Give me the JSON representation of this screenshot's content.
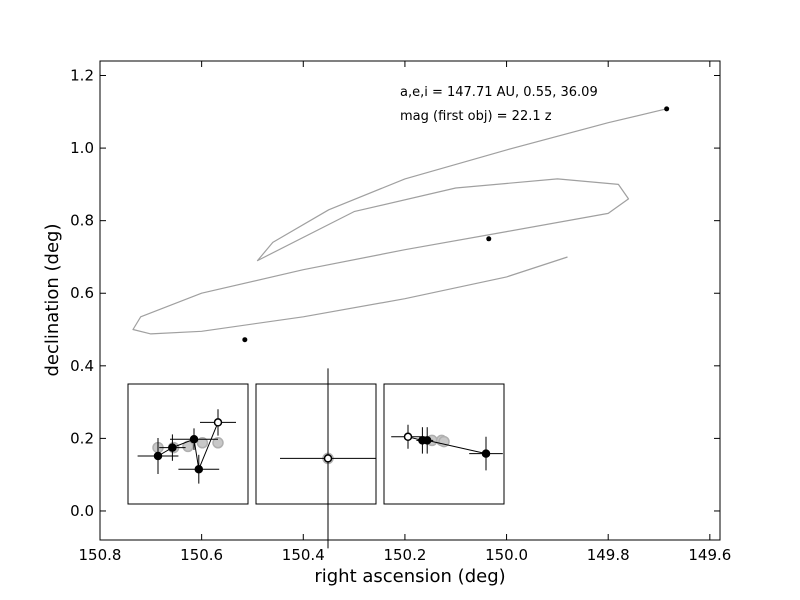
{
  "chart_data": {
    "type": "line",
    "title": "",
    "xlabel": "right ascension (deg)",
    "ylabel": "declination (deg)",
    "xlim": [
      150.8,
      149.58
    ],
    "ylim": [
      -0.08,
      1.24
    ],
    "x_inverted": true,
    "grid": false,
    "xticks": [
      150.8,
      150.6,
      150.4,
      150.2,
      150.0,
      149.8,
      149.6
    ],
    "xtick_labels": [
      "150.8",
      "150.6",
      "150.4",
      "150.2",
      "150.0",
      "149.8",
      "149.6"
    ],
    "yticks": [
      0.0,
      0.2,
      0.4,
      0.6,
      0.8,
      1.0,
      1.2
    ],
    "ytick_labels": [
      "0.0",
      "0.2",
      "0.4",
      "0.6",
      "0.8",
      "1.0",
      "1.2"
    ],
    "annotations": [
      "a,e,i = 147.71 AU, 0.55, 36.09",
      "mag (first obj) =  22.1 z"
    ],
    "series": [
      {
        "kind": "orbit_track",
        "color": "#a0a0a0",
        "x": [
          149.88,
          150.0,
          150.2,
          150.4,
          150.6,
          150.7,
          150.735,
          150.72,
          150.6,
          150.4,
          150.2,
          150.0,
          149.8,
          149.76,
          149.78,
          149.9,
          150.1,
          150.3,
          150.49,
          150.46,
          150.35,
          150.2,
          150.0,
          149.8,
          149.68
        ],
        "y": [
          0.7,
          0.645,
          0.585,
          0.535,
          0.495,
          0.488,
          0.5,
          0.535,
          0.6,
          0.665,
          0.72,
          0.77,
          0.82,
          0.86,
          0.9,
          0.915,
          0.89,
          0.825,
          0.69,
          0.74,
          0.83,
          0.915,
          0.995,
          1.07,
          1.11
        ]
      },
      {
        "kind": "detections",
        "color": "#000000",
        "x": [
          150.515,
          150.035,
          149.685
        ],
        "y": [
          0.472,
          0.75,
          1.108
        ]
      }
    ],
    "insets": [
      {
        "kind": "detection_cutout",
        "points": [
          {
            "u": 0.25,
            "v": 0.4,
            "xerr": 0.17,
            "yerr": 0.15,
            "filled": true
          },
          {
            "u": 0.37,
            "v": 0.47,
            "xerr": 0.11,
            "yerr": 0.11,
            "filled": true
          },
          {
            "u": 0.55,
            "v": 0.54,
            "xerr": 0.2,
            "yerr": 0.09,
            "filled": true
          },
          {
            "u": 0.59,
            "v": 0.29,
            "xerr": 0.17,
            "yerr": 0.12,
            "filled": true
          },
          {
            "u": 0.75,
            "v": 0.68,
            "xerr": 0.15,
            "yerr": 0.11,
            "filled": false
          }
        ],
        "ghosts": [
          {
            "u": 0.25,
            "v": 0.47
          },
          {
            "u": 0.38,
            "v": 0.47
          },
          {
            "u": 0.5,
            "v": 0.48
          },
          {
            "u": 0.62,
            "v": 0.51
          },
          {
            "u": 0.75,
            "v": 0.51
          }
        ]
      },
      {
        "kind": "detection_cutout",
        "points": [
          {
            "u": 0.6,
            "v": 0.38,
            "xerr": 0.4,
            "yerr": 0.75,
            "filled": false
          }
        ],
        "ghosts": [
          {
            "u": 0.6,
            "v": 0.38
          }
        ]
      },
      {
        "kind": "detection_cutout",
        "points": [
          {
            "u": 0.2,
            "v": 0.56,
            "xerr": 0.14,
            "yerr": 0.1,
            "filled": false
          },
          {
            "u": 0.32,
            "v": 0.53,
            "xerr": 0.05,
            "yerr": 0.11,
            "filled": true
          },
          {
            "u": 0.36,
            "v": 0.53,
            "xerr": 0.05,
            "yerr": 0.11,
            "filled": true
          },
          {
            "u": 0.85,
            "v": 0.42,
            "xerr": 0.14,
            "yerr": 0.14,
            "filled": true
          }
        ],
        "ghosts": [
          {
            "u": 0.4,
            "v": 0.53
          },
          {
            "u": 0.48,
            "v": 0.53
          },
          {
            "u": 0.5,
            "v": 0.52
          }
        ]
      }
    ]
  }
}
